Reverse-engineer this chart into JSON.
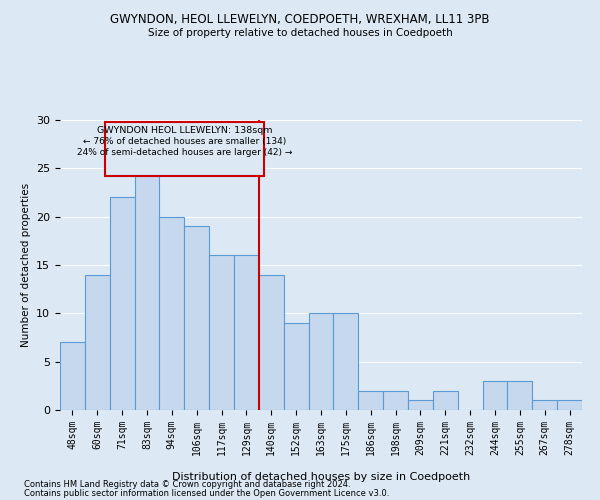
{
  "title1": "GWYNDON, HEOL LLEWELYN, COEDPOETH, WREXHAM, LL11 3PB",
  "title2": "Size of property relative to detached houses in Coedpoeth",
  "xlabel": "Distribution of detached houses by size in Coedpoeth",
  "ylabel": "Number of detached properties",
  "categories": [
    "48sqm",
    "60sqm",
    "71sqm",
    "83sqm",
    "94sqm",
    "106sqm",
    "117sqm",
    "129sqm",
    "140sqm",
    "152sqm",
    "163sqm",
    "175sqm",
    "186sqm",
    "198sqm",
    "209sqm",
    "221sqm",
    "232sqm",
    "244sqm",
    "255sqm",
    "267sqm",
    "278sqm"
  ],
  "values": [
    7,
    14,
    22,
    25,
    20,
    19,
    16,
    16,
    14,
    9,
    10,
    10,
    2,
    2,
    1,
    2,
    0,
    3,
    3,
    1,
    1
  ],
  "bar_color": "#c5d8ed",
  "bar_edge_color": "#5b9bd5",
  "ref_line_index": 8,
  "ref_line_color": "#cc0000",
  "annotation_title": "GWYNDON HEOL LLEWELYN: 138sqm",
  "annotation_line1": "← 76% of detached houses are smaller (134)",
  "annotation_line2": "24% of semi-detached houses are larger (42) →",
  "annotation_box_color": "#cc0000",
  "ylim": [
    0,
    30
  ],
  "yticks": [
    0,
    5,
    10,
    15,
    20,
    25,
    30
  ],
  "footer1": "Contains HM Land Registry data © Crown copyright and database right 2024.",
  "footer2": "Contains public sector information licensed under the Open Government Licence v3.0.",
  "bg_color": "#dce9f5",
  "grid_color": "#ffffff"
}
